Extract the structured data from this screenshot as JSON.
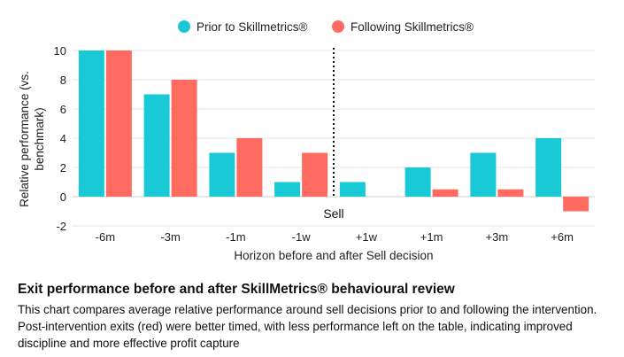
{
  "chart_data": {
    "type": "bar",
    "categories": [
      "-6m",
      "-3m",
      "-1m",
      "-1w",
      "+1w",
      "+1m",
      "+3m",
      "+6m"
    ],
    "series": [
      {
        "name": "Prior to Skillmetrics®",
        "color": "#1ac9d6",
        "values": [
          10,
          7,
          3,
          1,
          1,
          2,
          3,
          4
        ]
      },
      {
        "name": "Following Skillmetrics®",
        "color": "#ff6b61",
        "values": [
          10,
          8,
          4,
          3,
          0,
          0.5,
          0.5,
          -1
        ]
      }
    ],
    "ylabel": "Relative performance (vs. benchmark)",
    "xlabel": "Horizon before and after Sell decision",
    "ylim": [
      -2,
      10
    ],
    "yticks": [
      -2,
      0,
      2,
      4,
      6,
      8,
      10
    ],
    "grid": true,
    "legend": "top-center",
    "annotation": "Sell"
  },
  "caption": {
    "title": "Exit performance before and after SkillMetrics® behavioural review",
    "body": "This chart compares average relative performance around sell decisions prior to and following the intervention. Post-intervention exits (red) were better timed, with less performance left on the table, indicating improved discipline and more effective profit capture"
  }
}
